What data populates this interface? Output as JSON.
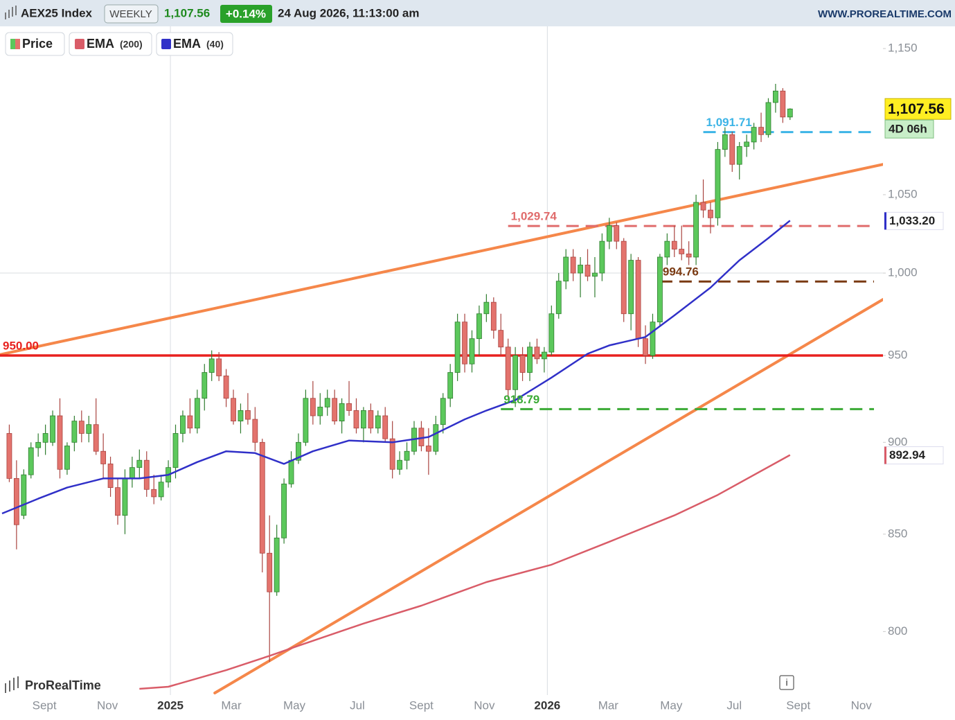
{
  "chart_data": {
    "type": "candlestick",
    "title": "AEX25 Index",
    "timeframe": "WEEKLY",
    "last_label": "1,107.56",
    "change": {
      "value": 0.14,
      "label": "+0.14%"
    },
    "datetime": "24 Aug 2026, 11:13:00 am",
    "source": "WWW.PROREALTIME.COM",
    "brand": "ProRealTime",
    "info_icon": "i",
    "countdown": "4D 06h",
    "log_scale": true,
    "xlim": [
      "2024-07-20",
      "2026-11-22"
    ],
    "ylim": [
      769,
      1166
    ],
    "yticks": [
      800,
      850,
      900,
      950,
      {
        "value": 1000,
        "label": "1,000",
        "grid": true
      },
      {
        "value": 1050,
        "label": "1,050"
      },
      {
        "value": 1150,
        "label": "1,150"
      }
    ],
    "xticks": [
      {
        "value": "2024-09",
        "label": "Sept"
      },
      {
        "value": "2024-11",
        "label": "Nov"
      },
      {
        "value": "2025-01",
        "label": "2025",
        "grid": true
      },
      {
        "value": "2025-03",
        "label": "Mar"
      },
      {
        "value": "2025-05",
        "label": "May"
      },
      {
        "value": "2025-07",
        "label": "Jul"
      },
      {
        "value": "2025-09",
        "label": "Sept"
      },
      {
        "value": "2025-11",
        "label": "Nov"
      },
      {
        "value": "2026-01",
        "label": "2026",
        "grid": true
      },
      {
        "value": "2026-03",
        "label": "Mar"
      },
      {
        "value": "2026-05",
        "label": "May"
      },
      {
        "value": "2026-07",
        "label": "Jul"
      },
      {
        "value": "2026-09",
        "label": "Sept"
      },
      {
        "value": "2026-11",
        "label": "Nov"
      }
    ],
    "series": [
      {
        "name": "Price",
        "up_color": "#5cc85c",
        "down_color": "#e3736d",
        "x": [
          "2024-07-29",
          "2024-08-05",
          "2024-08-12",
          "2024-08-19",
          "2024-08-26",
          "2024-09-02",
          "2024-09-09",
          "2024-09-16",
          "2024-09-23",
          "2024-09-30",
          "2024-10-07",
          "2024-10-14",
          "2024-10-21",
          "2024-10-28",
          "2024-11-04",
          "2024-11-11",
          "2024-11-18",
          "2024-11-25",
          "2024-12-02",
          "2024-12-09",
          "2024-12-16",
          "2024-12-23",
          "2024-12-30",
          "2025-01-06",
          "2025-01-13",
          "2025-01-20",
          "2025-01-27",
          "2025-02-03",
          "2025-02-10",
          "2025-02-17",
          "2025-02-24",
          "2025-03-03",
          "2025-03-10",
          "2025-03-17",
          "2025-03-24",
          "2025-03-31",
          "2025-04-07",
          "2025-04-14",
          "2025-04-21",
          "2025-04-28",
          "2025-05-05",
          "2025-05-12",
          "2025-05-19",
          "2025-05-26",
          "2025-06-02",
          "2025-06-09",
          "2025-06-16",
          "2025-06-23",
          "2025-06-30",
          "2025-07-07",
          "2025-07-14",
          "2025-07-21",
          "2025-07-28",
          "2025-08-04",
          "2025-08-11",
          "2025-08-18",
          "2025-08-25",
          "2025-09-01",
          "2025-09-08",
          "2025-09-15",
          "2025-09-22",
          "2025-09-29",
          "2025-10-06",
          "2025-10-13",
          "2025-10-20",
          "2025-10-27",
          "2025-11-03",
          "2025-11-10",
          "2025-11-17",
          "2025-11-24",
          "2025-12-01",
          "2025-12-08",
          "2025-12-15",
          "2025-12-22",
          "2025-12-29",
          "2026-01-05",
          "2026-01-12",
          "2026-01-19",
          "2026-01-26",
          "2026-02-02",
          "2026-02-09",
          "2026-02-16",
          "2026-02-23",
          "2026-03-02",
          "2026-03-09",
          "2026-03-16",
          "2026-03-23",
          "2026-03-30",
          "2026-04-06",
          "2026-04-13",
          "2026-04-20",
          "2026-04-27",
          "2026-05-04",
          "2026-05-11",
          "2026-05-18",
          "2026-05-25",
          "2026-06-01",
          "2026-06-08",
          "2026-06-15",
          "2026-06-22",
          "2026-06-29",
          "2026-07-06",
          "2026-07-13",
          "2026-07-20",
          "2026-07-27",
          "2026-08-03",
          "2026-08-10",
          "2026-08-17",
          "2026-08-24"
        ],
        "ohlc": [
          [
            905,
            910,
            878,
            880
          ],
          [
            880,
            890,
            842,
            855
          ],
          [
            860,
            885,
            858,
            882
          ],
          [
            882,
            900,
            880,
            897
          ],
          [
            897,
            905,
            892,
            900
          ],
          [
            900,
            910,
            893,
            905
          ],
          [
            900,
            918,
            898,
            915
          ],
          [
            915,
            925,
            880,
            885
          ],
          [
            885,
            900,
            882,
            898
          ],
          [
            900,
            915,
            895,
            912
          ],
          [
            912,
            918,
            900,
            905
          ],
          [
            905,
            915,
            900,
            910
          ],
          [
            910,
            925,
            893,
            895
          ],
          [
            895,
            905,
            880,
            888
          ],
          [
            888,
            892,
            870,
            875
          ],
          [
            875,
            880,
            855,
            860
          ],
          [
            860,
            885,
            850,
            880
          ],
          [
            880,
            892,
            875,
            886
          ],
          [
            886,
            896,
            880,
            890
          ],
          [
            890,
            895,
            870,
            874
          ],
          [
            874,
            882,
            866,
            870
          ],
          [
            870,
            882,
            868,
            878
          ],
          [
            878,
            890,
            875,
            886
          ],
          [
            886,
            910,
            880,
            905
          ],
          [
            905,
            918,
            900,
            915
          ],
          [
            915,
            925,
            905,
            908
          ],
          [
            908,
            930,
            905,
            925
          ],
          [
            925,
            945,
            918,
            940
          ],
          [
            940,
            953,
            935,
            948
          ],
          [
            948,
            952,
            935,
            938
          ],
          [
            938,
            942,
            920,
            925
          ],
          [
            925,
            930,
            910,
            912
          ],
          [
            912,
            922,
            905,
            918
          ],
          [
            918,
            928,
            910,
            913
          ],
          [
            913,
            920,
            895,
            900
          ],
          [
            900,
            902,
            830,
            840
          ],
          [
            840,
            860,
            785,
            820
          ],
          [
            820,
            855,
            818,
            848
          ],
          [
            848,
            880,
            845,
            877
          ],
          [
            877,
            895,
            875,
            890
          ],
          [
            890,
            905,
            888,
            900
          ],
          [
            900,
            930,
            898,
            925
          ],
          [
            925,
            935,
            910,
            915
          ],
          [
            915,
            928,
            910,
            920
          ],
          [
            920,
            930,
            915,
            925
          ],
          [
            925,
            930,
            910,
            912
          ],
          [
            912,
            925,
            905,
            922
          ],
          [
            922,
            935,
            915,
            918
          ],
          [
            918,
            925,
            905,
            908
          ],
          [
            908,
            920,
            900,
            918
          ],
          [
            918,
            922,
            905,
            908
          ],
          [
            908,
            918,
            905,
            915
          ],
          [
            915,
            920,
            900,
            902
          ],
          [
            902,
            912,
            880,
            885
          ],
          [
            885,
            895,
            882,
            890
          ],
          [
            890,
            900,
            885,
            895
          ],
          [
            895,
            912,
            893,
            908
          ],
          [
            908,
            912,
            895,
            898
          ],
          [
            898,
            908,
            882,
            895
          ],
          [
            895,
            915,
            893,
            910
          ],
          [
            910,
            928,
            905,
            925
          ],
          [
            925,
            945,
            920,
            940
          ],
          [
            940,
            975,
            935,
            970
          ],
          [
            970,
            975,
            940,
            945
          ],
          [
            945,
            965,
            940,
            960
          ],
          [
            960,
            980,
            950,
            975
          ],
          [
            975,
            987,
            970,
            982
          ],
          [
            982,
            985,
            960,
            965
          ],
          [
            965,
            975,
            950,
            955
          ],
          [
            955,
            960,
            925,
            930
          ],
          [
            930,
            955,
            920,
            950
          ],
          [
            950,
            955,
            935,
            940
          ],
          [
            940,
            958,
            935,
            955
          ],
          [
            955,
            960,
            945,
            948
          ],
          [
            948,
            955,
            940,
            952
          ],
          [
            952,
            980,
            950,
            975
          ],
          [
            975,
            1000,
            972,
            995
          ],
          [
            995,
            1015,
            990,
            1010
          ],
          [
            1010,
            1015,
            995,
            1000
          ],
          [
            1000,
            1010,
            985,
            1005
          ],
          [
            1005,
            1015,
            995,
            998
          ],
          [
            998,
            1010,
            985,
            1000
          ],
          [
            1000,
            1025,
            995,
            1020
          ],
          [
            1020,
            1035,
            1015,
            1030
          ],
          [
            1030,
            1032,
            1015,
            1020
          ],
          [
            1020,
            1022,
            970,
            975
          ],
          [
            975,
            1012,
            965,
            1008
          ],
          [
            1008,
            1010,
            955,
            960
          ],
          [
            960,
            968,
            945,
            950
          ],
          [
            950,
            975,
            948,
            970
          ],
          [
            970,
            1012,
            968,
            1010
          ],
          [
            1010,
            1025,
            1005,
            1020
          ],
          [
            1020,
            1030,
            1010,
            1015
          ],
          [
            1015,
            1030,
            1008,
            1012
          ],
          [
            1012,
            1020,
            1005,
            1010
          ],
          [
            1010,
            1050,
            1005,
            1045
          ],
          [
            1045,
            1060,
            1035,
            1040
          ],
          [
            1040,
            1045,
            1025,
            1035
          ],
          [
            1035,
            1085,
            1030,
            1080
          ],
          [
            1080,
            1095,
            1075,
            1090
          ],
          [
            1090,
            1092,
            1065,
            1070
          ],
          [
            1070,
            1085,
            1060,
            1082
          ],
          [
            1082,
            1090,
            1075,
            1085
          ],
          [
            1085,
            1098,
            1080,
            1095
          ],
          [
            1095,
            1105,
            1085,
            1090
          ],
          [
            1090,
            1115,
            1088,
            1112
          ],
          [
            1112,
            1125,
            1105,
            1120
          ],
          [
            1120,
            1122,
            1098,
            1102
          ],
          [
            1102,
            1108,
            1100,
            1107.56
          ]
        ]
      },
      {
        "name": "EMA",
        "period_label": "(200)",
        "color": "#d95c68",
        "x": [
          "2024-12-02",
          "2024-12-30",
          "2025-02-24",
          "2025-04-07",
          "2025-05-05",
          "2025-07-07",
          "2025-09-01",
          "2025-11-03",
          "2026-01-05",
          "2026-03-02",
          "2026-05-04",
          "2026-06-15",
          "2026-08-24"
        ],
        "values": [
          772,
          773,
          781,
          788,
          793,
          804,
          813,
          825,
          834,
          846,
          860,
          871,
          892.94
        ]
      },
      {
        "name": "EMA",
        "period_label": "(40)",
        "color": "#3030c8",
        "last_label": "1,033.20",
        "x": [
          "2024-07-22",
          "2024-08-26",
          "2024-09-23",
          "2024-10-28",
          "2024-12-02",
          "2024-12-30",
          "2025-01-27",
          "2025-02-24",
          "2025-03-24",
          "2025-04-21",
          "2025-05-19",
          "2025-06-23",
          "2025-08-04",
          "2025-09-08",
          "2025-10-13",
          "2025-11-03",
          "2025-12-01",
          "2026-01-05",
          "2026-02-09",
          "2026-03-02",
          "2026-04-06",
          "2026-05-04",
          "2026-06-08",
          "2026-07-06",
          "2026-08-03",
          "2026-08-24"
        ],
        "values": [
          861,
          869,
          875,
          880,
          880,
          882,
          889,
          895,
          894,
          888,
          895,
          901,
          900,
          903,
          913,
          918,
          924,
          937,
          951,
          956,
          961,
          974,
          991,
          1008,
          1022,
          1033.2
        ]
      }
    ],
    "trendlines": [
      {
        "color": "#f5874a",
        "points": [
          [
            "2024-07-20",
            950.5
          ],
          [
            "2026-11-22",
            1070
          ]
        ]
      },
      {
        "color": "#f5874a",
        "points": [
          [
            "2025-02-13",
            770
          ],
          [
            "2026-11-22",
            983.7
          ]
        ]
      }
    ],
    "levels": [
      {
        "value": 950,
        "label": "950.00",
        "color": "#e8211f",
        "style": "solid",
        "start": "2024-07-20"
      },
      {
        "value": 1029.74,
        "label": "1,029.74",
        "color": "#e06c6c",
        "style": "dashed",
        "start": "2025-11-24"
      },
      {
        "value": 994.76,
        "label": "994.76",
        "color": "#7a3a12",
        "style": "dashed",
        "start": "2026-04-20"
      },
      {
        "value": 918.79,
        "label": "918.79",
        "color": "#3aaa35",
        "style": "dashed",
        "start": "2025-11-17"
      },
      {
        "value": 1091.71,
        "label": "1,091.71",
        "color": "#3cb4e6",
        "style": "dashed",
        "start": "2026-06-01"
      }
    ]
  }
}
